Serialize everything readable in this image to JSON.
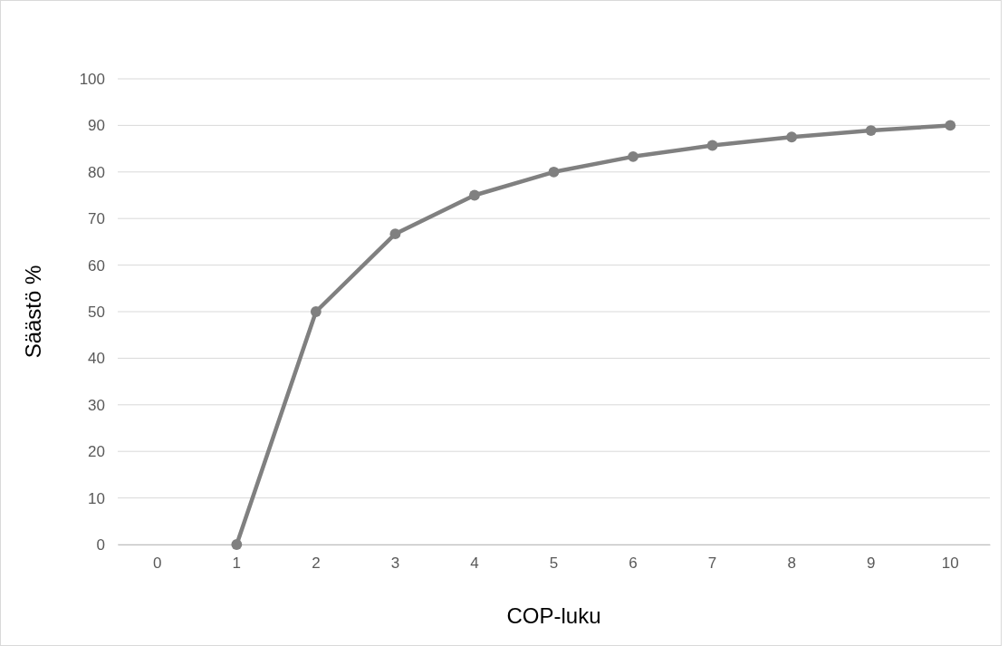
{
  "chart_data": {
    "type": "line",
    "xlabel": "COP-luku",
    "ylabel": "Säästö %",
    "categories": [
      "0",
      "1",
      "2",
      "3",
      "4",
      "5",
      "6",
      "7",
      "8",
      "9",
      "10"
    ],
    "series": [
      {
        "color": "#808080",
        "values": [
          null,
          0,
          50,
          66.7,
          75,
          80,
          83.3,
          85.7,
          87.5,
          88.9,
          90
        ]
      }
    ],
    "ylim": [
      0,
      100
    ],
    "yticks": [
      0,
      10,
      20,
      30,
      40,
      50,
      60,
      70,
      80,
      90,
      100
    ],
    "grid": "y",
    "marker": "circle",
    "line_style": "solid"
  }
}
